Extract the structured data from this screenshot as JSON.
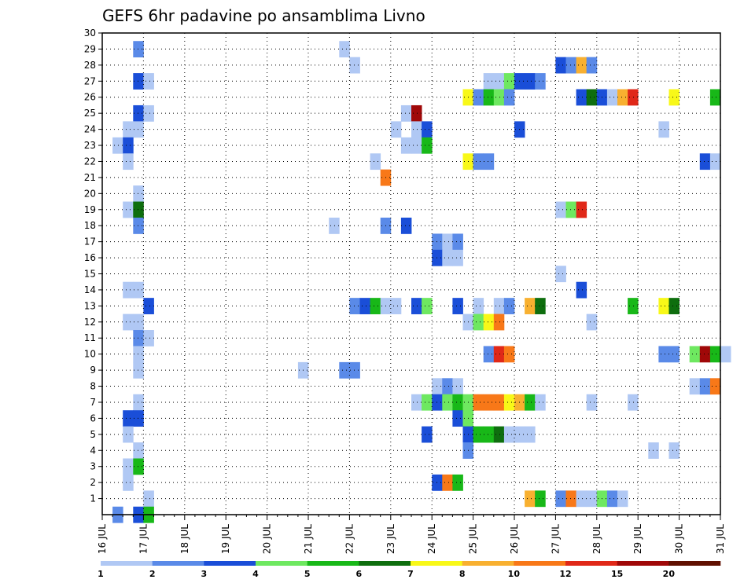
{
  "chart_data": {
    "type": "heatmap",
    "title": "GEFS 6hr padavine po ansamblima Livno",
    "x_ticks": [
      "16 JUL",
      "17 JUL",
      "18 JUL",
      "19 JUL",
      "20 JUL",
      "21 JUL",
      "22 JUL",
      "23 JUL",
      "24 JUL",
      "25 JUL",
      "26 JUL",
      "27 JUL",
      "28 JUL",
      "29 JUL",
      "30 JUL",
      "31 JUL"
    ],
    "y_ticks": [
      "1",
      "2",
      "3",
      "4",
      "5",
      "6",
      "7",
      "8",
      "9",
      "10",
      "11",
      "12",
      "13",
      "14",
      "15",
      "16",
      "17",
      "18",
      "19",
      "20",
      "21",
      "22",
      "23",
      "24",
      "25",
      "26",
      "27",
      "28",
      "29",
      "30"
    ],
    "grid": true,
    "legend": {
      "placement": "bottom",
      "labels": [
        "1",
        "2",
        "3",
        "4",
        "5",
        "6",
        "7",
        "8",
        "10",
        "12",
        "15",
        "20"
      ],
      "colors": [
        "#b0c8f4",
        "#5a8ae8",
        "#1a4ed8",
        "#6ee860",
        "#18b818",
        "#0e6e0e",
        "#f8f818",
        "#f8b030",
        "#f87818",
        "#e02818",
        "#a00808",
        "#601000"
      ]
    },
    "cells": [
      {
        "m": 29,
        "t": 3,
        "l": 1
      },
      {
        "m": 29,
        "t": 23,
        "l": 0
      },
      {
        "m": 28,
        "t": 24,
        "l": 0
      },
      {
        "m": 28,
        "t": 44,
        "l": 2
      },
      {
        "m": 28,
        "t": 45,
        "l": 1
      },
      {
        "m": 28,
        "t": 46,
        "l": 7
      },
      {
        "m": 28,
        "t": 47,
        "l": 1
      },
      {
        "m": 27,
        "t": 3,
        "l": 2
      },
      {
        "m": 27,
        "t": 4,
        "l": 0
      },
      {
        "m": 27,
        "t": 37,
        "l": 0
      },
      {
        "m": 27,
        "t": 38,
        "l": 0
      },
      {
        "m": 27,
        "t": 39,
        "l": 3
      },
      {
        "m": 27,
        "t": 40,
        "l": 2
      },
      {
        "m": 27,
        "t": 41,
        "l": 2
      },
      {
        "m": 27,
        "t": 42,
        "l": 1
      },
      {
        "m": 26,
        "t": 35,
        "l": 6
      },
      {
        "m": 26,
        "t": 36,
        "l": 1
      },
      {
        "m": 26,
        "t": 37,
        "l": 4
      },
      {
        "m": 26,
        "t": 38,
        "l": 3
      },
      {
        "m": 26,
        "t": 39,
        "l": 1
      },
      {
        "m": 26,
        "t": 46,
        "l": 2
      },
      {
        "m": 26,
        "t": 47,
        "l": 5
      },
      {
        "m": 26,
        "t": 48,
        "l": 2
      },
      {
        "m": 26,
        "t": 49,
        "l": 0
      },
      {
        "m": 26,
        "t": 50,
        "l": 7
      },
      {
        "m": 26,
        "t": 51,
        "l": 9
      },
      {
        "m": 26,
        "t": 55,
        "l": 6
      },
      {
        "m": 26,
        "t": 59,
        "l": 4
      },
      {
        "m": 25,
        "t": 3,
        "l": 2
      },
      {
        "m": 25,
        "t": 4,
        "l": 0
      },
      {
        "m": 25,
        "t": 29,
        "l": 0
      },
      {
        "m": 25,
        "t": 30,
        "l": 10
      },
      {
        "m": 24,
        "t": 2,
        "l": 0
      },
      {
        "m": 24,
        "t": 3,
        "l": 0
      },
      {
        "m": 24,
        "t": 28,
        "l": 0
      },
      {
        "m": 24,
        "t": 30,
        "l": 0
      },
      {
        "m": 24,
        "t": 31,
        "l": 2
      },
      {
        "m": 24,
        "t": 40,
        "l": 2
      },
      {
        "m": 24,
        "t": 54,
        "l": 0
      },
      {
        "m": 23,
        "t": 1,
        "l": 0
      },
      {
        "m": 23,
        "t": 2,
        "l": 2
      },
      {
        "m": 23,
        "t": 29,
        "l": 0
      },
      {
        "m": 23,
        "t": 30,
        "l": 0
      },
      {
        "m": 23,
        "t": 31,
        "l": 4
      },
      {
        "m": 22,
        "t": 2,
        "l": 0
      },
      {
        "m": 22,
        "t": 26,
        "l": 0
      },
      {
        "m": 22,
        "t": 35,
        "l": 6
      },
      {
        "m": 22,
        "t": 36,
        "l": 1
      },
      {
        "m": 22,
        "t": 37,
        "l": 1
      },
      {
        "m": 22,
        "t": 58,
        "l": 2
      },
      {
        "m": 22,
        "t": 59,
        "l": 0
      },
      {
        "m": 21,
        "t": 27,
        "l": 8
      },
      {
        "m": 20,
        "t": 3,
        "l": 0
      },
      {
        "m": 19,
        "t": 2,
        "l": 0
      },
      {
        "m": 19,
        "t": 3,
        "l": 5
      },
      {
        "m": 19,
        "t": 44,
        "l": 0
      },
      {
        "m": 19,
        "t": 45,
        "l": 3
      },
      {
        "m": 19,
        "t": 46,
        "l": 9
      },
      {
        "m": 18,
        "t": 3,
        "l": 1
      },
      {
        "m": 18,
        "t": 22,
        "l": 0
      },
      {
        "m": 18,
        "t": 27,
        "l": 1
      },
      {
        "m": 18,
        "t": 29,
        "l": 2
      },
      {
        "m": 17,
        "t": 32,
        "l": 1
      },
      {
        "m": 17,
        "t": 33,
        "l": 0
      },
      {
        "m": 17,
        "t": 34,
        "l": 1
      },
      {
        "m": 16,
        "t": 32,
        "l": 2
      },
      {
        "m": 16,
        "t": 33,
        "l": 0
      },
      {
        "m": 16,
        "t": 34,
        "l": 0
      },
      {
        "m": 15,
        "t": 44,
        "l": 0
      },
      {
        "m": 14,
        "t": 2,
        "l": 0
      },
      {
        "m": 14,
        "t": 3,
        "l": 0
      },
      {
        "m": 14,
        "t": 46,
        "l": 2
      },
      {
        "m": 13,
        "t": 4,
        "l": 2
      },
      {
        "m": 13,
        "t": 24,
        "l": 1
      },
      {
        "m": 13,
        "t": 25,
        "l": 2
      },
      {
        "m": 13,
        "t": 26,
        "l": 4
      },
      {
        "m": 13,
        "t": 27,
        "l": 0
      },
      {
        "m": 13,
        "t": 28,
        "l": 0
      },
      {
        "m": 13,
        "t": 30,
        "l": 2
      },
      {
        "m": 13,
        "t": 31,
        "l": 3
      },
      {
        "m": 13,
        "t": 34,
        "l": 2
      },
      {
        "m": 13,
        "t": 36,
        "l": 0
      },
      {
        "m": 13,
        "t": 38,
        "l": 0
      },
      {
        "m": 13,
        "t": 39,
        "l": 1
      },
      {
        "m": 13,
        "t": 41,
        "l": 7
      },
      {
        "m": 13,
        "t": 42,
        "l": 5
      },
      {
        "m": 13,
        "t": 51,
        "l": 4
      },
      {
        "m": 13,
        "t": 54,
        "l": 6
      },
      {
        "m": 13,
        "t": 55,
        "l": 5
      },
      {
        "m": 12,
        "t": 2,
        "l": 0
      },
      {
        "m": 12,
        "t": 3,
        "l": 0
      },
      {
        "m": 12,
        "t": 35,
        "l": 0
      },
      {
        "m": 12,
        "t": 36,
        "l": 3
      },
      {
        "m": 12,
        "t": 37,
        "l": 6
      },
      {
        "m": 12,
        "t": 38,
        "l": 8
      },
      {
        "m": 12,
        "t": 47,
        "l": 0
      },
      {
        "m": 11,
        "t": 3,
        "l": 1
      },
      {
        "m": 11,
        "t": 4,
        "l": 0
      },
      {
        "m": 10,
        "t": 3,
        "l": 0
      },
      {
        "m": 10,
        "t": 37,
        "l": 1
      },
      {
        "m": 10,
        "t": 38,
        "l": 9
      },
      {
        "m": 10,
        "t": 39,
        "l": 8
      },
      {
        "m": 10,
        "t": 54,
        "l": 1
      },
      {
        "m": 10,
        "t": 55,
        "l": 1
      },
      {
        "m": 10,
        "t": 57,
        "l": 3
      },
      {
        "m": 10,
        "t": 58,
        "l": 10
      },
      {
        "m": 10,
        "t": 59,
        "l": 4
      },
      {
        "m": 10,
        "t": 60,
        "l": 0
      },
      {
        "m": 9,
        "t": 3,
        "l": 0
      },
      {
        "m": 9,
        "t": 19,
        "l": 0
      },
      {
        "m": 9,
        "t": 23,
        "l": 1
      },
      {
        "m": 9,
        "t": 24,
        "l": 1
      },
      {
        "m": 8,
        "t": 32,
        "l": 0
      },
      {
        "m": 8,
        "t": 33,
        "l": 1
      },
      {
        "m": 8,
        "t": 34,
        "l": 0
      },
      {
        "m": 8,
        "t": 57,
        "l": 0
      },
      {
        "m": 8,
        "t": 58,
        "l": 1
      },
      {
        "m": 8,
        "t": 59,
        "l": 8
      },
      {
        "m": 7,
        "t": 3,
        "l": 0
      },
      {
        "m": 7,
        "t": 30,
        "l": 0
      },
      {
        "m": 7,
        "t": 31,
        "l": 3
      },
      {
        "m": 7,
        "t": 32,
        "l": 2
      },
      {
        "m": 7,
        "t": 33,
        "l": 3
      },
      {
        "m": 7,
        "t": 34,
        "l": 4
      },
      {
        "m": 7,
        "t": 35,
        "l": 3
      },
      {
        "m": 7,
        "t": 36,
        "l": 8
      },
      {
        "m": 7,
        "t": 37,
        "l": 8
      },
      {
        "m": 7,
        "t": 38,
        "l": 8
      },
      {
        "m": 7,
        "t": 39,
        "l": 6
      },
      {
        "m": 7,
        "t": 40,
        "l": 7
      },
      {
        "m": 7,
        "t": 41,
        "l": 4
      },
      {
        "m": 7,
        "t": 42,
        "l": 0
      },
      {
        "m": 7,
        "t": 47,
        "l": 0
      },
      {
        "m": 7,
        "t": 51,
        "l": 0
      },
      {
        "m": 6,
        "t": 2,
        "l": 2
      },
      {
        "m": 6,
        "t": 3,
        "l": 2
      },
      {
        "m": 6,
        "t": 34,
        "l": 2
      },
      {
        "m": 6,
        "t": 35,
        "l": 3
      },
      {
        "m": 5,
        "t": 2,
        "l": 0
      },
      {
        "m": 5,
        "t": 31,
        "l": 2
      },
      {
        "m": 5,
        "t": 35,
        "l": 2
      },
      {
        "m": 5,
        "t": 36,
        "l": 4
      },
      {
        "m": 5,
        "t": 37,
        "l": 4
      },
      {
        "m": 5,
        "t": 38,
        "l": 5
      },
      {
        "m": 5,
        "t": 39,
        "l": 0
      },
      {
        "m": 5,
        "t": 40,
        "l": 0
      },
      {
        "m": 5,
        "t": 41,
        "l": 0
      },
      {
        "m": 4,
        "t": 3,
        "l": 0
      },
      {
        "m": 4,
        "t": 35,
        "l": 1
      },
      {
        "m": 4,
        "t": 53,
        "l": 0
      },
      {
        "m": 4,
        "t": 55,
        "l": 0
      },
      {
        "m": 3,
        "t": 2,
        "l": 0
      },
      {
        "m": 3,
        "t": 3,
        "l": 4
      },
      {
        "m": 2,
        "t": 2,
        "l": 0
      },
      {
        "m": 2,
        "t": 32,
        "l": 2
      },
      {
        "m": 2,
        "t": 33,
        "l": 8
      },
      {
        "m": 2,
        "t": 34,
        "l": 4
      },
      {
        "m": 1,
        "t": 4,
        "l": 0
      },
      {
        "m": 1,
        "t": 41,
        "l": 7
      },
      {
        "m": 1,
        "t": 42,
        "l": 4
      },
      {
        "m": 1,
        "t": 44,
        "l": 1
      },
      {
        "m": 1,
        "t": 45,
        "l": 8
      },
      {
        "m": 1,
        "t": 46,
        "l": 0
      },
      {
        "m": 1,
        "t": 47,
        "l": 0
      },
      {
        "m": 1,
        "t": 48,
        "l": 3
      },
      {
        "m": 1,
        "t": 49,
        "l": 1
      },
      {
        "m": 1,
        "t": 50,
        "l": 0
      },
      {
        "m": 0,
        "t": 1,
        "l": 1
      },
      {
        "m": 0,
        "t": 3,
        "l": 2
      },
      {
        "m": 0,
        "t": 4,
        "l": 4
      }
    ]
  }
}
